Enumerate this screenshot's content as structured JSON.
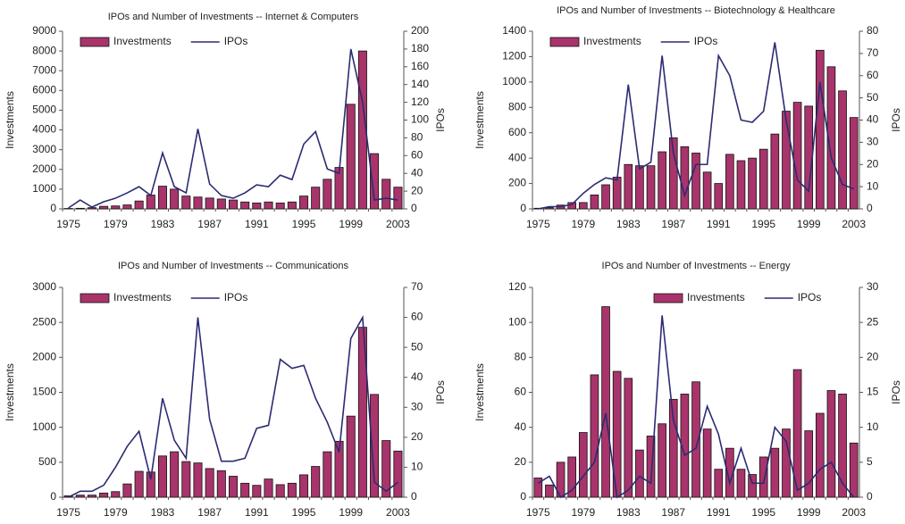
{
  "chart_data": [
    {
      "type": "bar",
      "title": "IPOs and Number of Investments -- Internet & Computers",
      "y_label": "Investments",
      "y2_label": "IPOs",
      "legend": "upper left",
      "categories": [
        "1975",
        null,
        null,
        null,
        "1979",
        null,
        null,
        null,
        "1983",
        null,
        null,
        null,
        "1987",
        null,
        null,
        null,
        "1991",
        null,
        null,
        null,
        "1995",
        null,
        null,
        null,
        "1999",
        null,
        null,
        null,
        "2003"
      ],
      "series": [
        {
          "name": "Investments",
          "type": "bar",
          "color": "#a8346b",
          "values": [
            20,
            30,
            60,
            130,
            150,
            200,
            400,
            700,
            1150,
            1000,
            650,
            600,
            550,
            500,
            450,
            350,
            300,
            350,
            300,
            350,
            650,
            1100,
            1500,
            2100,
            5300,
            8000,
            2800,
            1500,
            1100
          ]
        },
        {
          "name": "IPOs",
          "type": "line",
          "axis": "y2",
          "color": "#2b2b73",
          "values": [
            1,
            10,
            2,
            8,
            12,
            18,
            25,
            15,
            63,
            25,
            18,
            90,
            28,
            15,
            12,
            18,
            27,
            25,
            38,
            33,
            73,
            87,
            45,
            40,
            180,
            120,
            10,
            12,
            10
          ]
        }
      ],
      "ylim": [
        0,
        9000
      ],
      "yticks": [
        0,
        1000,
        2000,
        3000,
        4000,
        5000,
        6000,
        7000,
        8000,
        9000
      ],
      "y2lim": [
        0,
        200
      ],
      "y2ticks": [
        0,
        20,
        40,
        60,
        80,
        100,
        120,
        140,
        160,
        180,
        200
      ]
    },
    {
      "type": "bar",
      "title": "IPOs and Number of Investments -- Biotechnology & Healthcare",
      "y_label": "Investments",
      "y2_label": "IPOs",
      "legend": "upper left",
      "categories": [
        "1975",
        null,
        null,
        null,
        "1979",
        null,
        null,
        null,
        "1983",
        null,
        null,
        null,
        "1987",
        null,
        null,
        null,
        "1991",
        null,
        null,
        null,
        "1995",
        null,
        null,
        null,
        "1999",
        null,
        null,
        null,
        "2003"
      ],
      "series": [
        {
          "name": "Investments",
          "type": "bar",
          "color": "#a8346b",
          "values": [
            5,
            10,
            30,
            50,
            50,
            110,
            190,
            250,
            350,
            340,
            340,
            450,
            560,
            490,
            440,
            290,
            200,
            430,
            380,
            400,
            470,
            590,
            770,
            840,
            810,
            1250,
            1120,
            930,
            720
          ]
        },
        {
          "name": "IPOs",
          "type": "line",
          "axis": "y2",
          "color": "#2b2b73",
          "values": [
            0,
            1,
            1,
            2,
            7,
            11,
            14,
            13,
            56,
            18,
            21,
            69,
            25,
            6,
            20,
            20,
            69,
            60,
            40,
            39,
            44,
            75,
            40,
            13,
            8,
            57,
            23,
            11,
            9
          ]
        }
      ],
      "ylim": [
        0,
        1400
      ],
      "yticks": [
        0,
        200,
        400,
        600,
        800,
        1000,
        1200,
        1400
      ],
      "y2lim": [
        0,
        80
      ],
      "y2ticks": [
        0,
        10,
        20,
        30,
        40,
        50,
        60,
        70,
        80
      ]
    },
    {
      "type": "bar",
      "title": "IPOs and Number of Investments -- Communications",
      "y_label": "Investments",
      "y2_label": "IPOs",
      "legend": "upper left",
      "categories": [
        "1975",
        null,
        null,
        null,
        "1979",
        null,
        null,
        null,
        "1983",
        null,
        null,
        null,
        "1987",
        null,
        null,
        null,
        "1991",
        null,
        null,
        null,
        "1995",
        null,
        null,
        null,
        "1999",
        null,
        null,
        null,
        "2003"
      ],
      "series": [
        {
          "name": "Investments",
          "type": "bar",
          "color": "#a8346b",
          "values": [
            20,
            30,
            30,
            60,
            80,
            190,
            370,
            360,
            590,
            650,
            510,
            490,
            410,
            380,
            300,
            200,
            170,
            260,
            180,
            200,
            320,
            440,
            650,
            800,
            1160,
            2430,
            1470,
            810,
            660
          ]
        },
        {
          "name": "IPOs",
          "type": "line",
          "axis": "y2",
          "color": "#2b2b73",
          "values": [
            0,
            2,
            2,
            4,
            10,
            17,
            22,
            6,
            33,
            19,
            13,
            60,
            26,
            12,
            12,
            13,
            23,
            24,
            46,
            43,
            44,
            33,
            25,
            15,
            53,
            60,
            5,
            2,
            5
          ]
        }
      ],
      "ylim": [
        0,
        3000
      ],
      "yticks": [
        0,
        500,
        1000,
        1500,
        2000,
        2500,
        3000
      ],
      "y2lim": [
        0,
        70
      ],
      "y2ticks": [
        0,
        10,
        20,
        30,
        40,
        50,
        60,
        70
      ]
    },
    {
      "type": "bar",
      "title": "IPOs and Number of Investments -- Energy",
      "y_label": "Investments",
      "y2_label": "IPOs",
      "legend": "upper right",
      "categories": [
        "1975",
        null,
        null,
        null,
        "1979",
        null,
        null,
        null,
        "1983",
        null,
        null,
        null,
        "1987",
        null,
        null,
        null,
        "1991",
        null,
        null,
        null,
        "1995",
        null,
        null,
        null,
        "1999",
        null,
        null,
        null,
        "2003"
      ],
      "series": [
        {
          "name": "Investments",
          "type": "bar",
          "color": "#a8346b",
          "values": [
            11,
            7,
            20,
            23,
            37,
            70,
            109,
            72,
            68,
            27,
            35,
            42,
            56,
            59,
            66,
            39,
            16,
            28,
            16,
            13,
            23,
            28,
            39,
            73,
            38,
            48,
            61,
            59,
            31
          ]
        },
        {
          "name": "IPOs",
          "type": "line",
          "axis": "y2",
          "color": "#2b2b73",
          "values": [
            2,
            3,
            0,
            1,
            3,
            5,
            12,
            0,
            1,
            3,
            2,
            26,
            11,
            6,
            7,
            13,
            9,
            2,
            7,
            2,
            2,
            10,
            8,
            1,
            2,
            4,
            5,
            2,
            0
          ]
        }
      ],
      "ylim": [
        0,
        120
      ],
      "yticks": [
        0,
        20,
        40,
        60,
        80,
        100,
        120
      ],
      "y2lim": [
        0,
        30
      ],
      "y2ticks": [
        0,
        5,
        10,
        15,
        20,
        25,
        30
      ]
    }
  ]
}
